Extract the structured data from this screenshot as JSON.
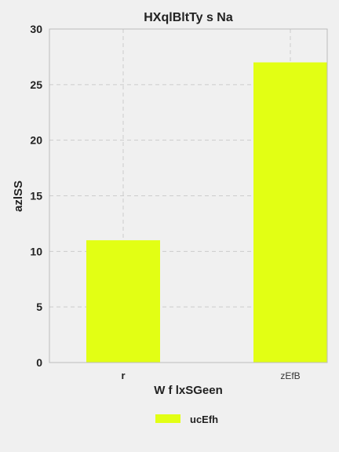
{
  "chart_data": {
    "type": "bar",
    "title": "HXqlBltTy s Na",
    "xlabel": "W f lxSGeen",
    "ylabel": "azlSS",
    "categories": [
      "r",
      "zEfB"
    ],
    "series": [
      {
        "name": "ucEfh",
        "values": [
          11,
          27
        ],
        "color": "#e2ff14"
      }
    ],
    "ylim": [
      0,
      30
    ],
    "yticks": [
      0,
      5,
      10,
      15,
      20,
      25,
      30
    ],
    "grid": true,
    "legend_position": "bottom-center"
  }
}
